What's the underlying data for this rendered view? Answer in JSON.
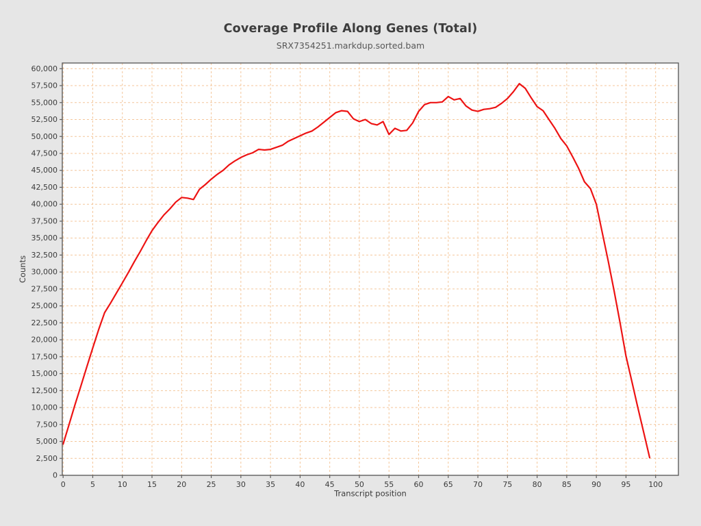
{
  "header": {
    "title": "Coverage Profile Along Genes (Total)",
    "subtitle": "SRX7354251.markdup.sorted.bam"
  },
  "style": {
    "figure_background": "#e6e6e6",
    "plot_background": "#ffffff",
    "grid_color": "#f4c69a",
    "axis_color": "#5e5e5e",
    "series_color": "#ed1313",
    "tick_label_color": "#3a3a3a"
  },
  "chart_data": {
    "type": "line",
    "title": "Coverage Profile Along Genes (Total)",
    "subtitle": "SRX7354251.markdup.sorted.bam",
    "xlabel": "Transcript position",
    "ylabel": "Counts",
    "xlim": [
      0,
      103.8
    ],
    "ylim": [
      0,
      60840
    ],
    "grid": true,
    "legend_position": "none",
    "x_ticks": [
      0,
      5,
      10,
      15,
      20,
      25,
      30,
      35,
      40,
      45,
      50,
      55,
      60,
      65,
      70,
      75,
      80,
      85,
      90,
      95,
      100
    ],
    "y_tick_labels": [
      "0",
      "2,500",
      "5,000",
      "7,500",
      "10,000",
      "12,500",
      "15,000",
      "17,500",
      "20,000",
      "22,500",
      "25,000",
      "27,500",
      "30,000",
      "32,500",
      "35,000",
      "37,500",
      "40,000",
      "42,500",
      "45,000",
      "47,500",
      "50,000",
      "52,500",
      "55,000",
      "57,500",
      "60,000"
    ],
    "series": [
      {
        "name": "SRX7354251.markdup.sorted.bam",
        "color": "#ed1313",
        "x_start": 0,
        "x_step": 1,
        "values": [
          4600,
          7500,
          10400,
          13200,
          16000,
          18800,
          21500,
          24000,
          25400,
          26900,
          28400,
          29900,
          31500,
          33000,
          34600,
          36100,
          37300,
          38400,
          39300,
          40300,
          41000,
          40900,
          40700,
          42200,
          42900,
          43700,
          44400,
          45000,
          45800,
          46400,
          46900,
          47300,
          47600,
          48100,
          48000,
          48100,
          48400,
          48700,
          49300,
          49700,
          50100,
          50500,
          50800,
          51400,
          52100,
          52800,
          53500,
          53800,
          53700,
          52600,
          52200,
          52500,
          51900,
          51700,
          52200,
          50300,
          51200,
          50800,
          50900,
          52000,
          53700,
          54700,
          55000,
          55000,
          55100,
          55900,
          55400,
          55600,
          54500,
          53900,
          53700,
          54000,
          54100,
          54300,
          54900,
          55600,
          56600,
          57800,
          57100,
          55700,
          54400,
          53800,
          52500,
          51200,
          49700,
          48600,
          47000,
          45300,
          43300,
          42300,
          40000,
          35800,
          31600,
          27200,
          22500,
          17600,
          13800,
          10000,
          6300,
          2600
        ]
      }
    ]
  }
}
